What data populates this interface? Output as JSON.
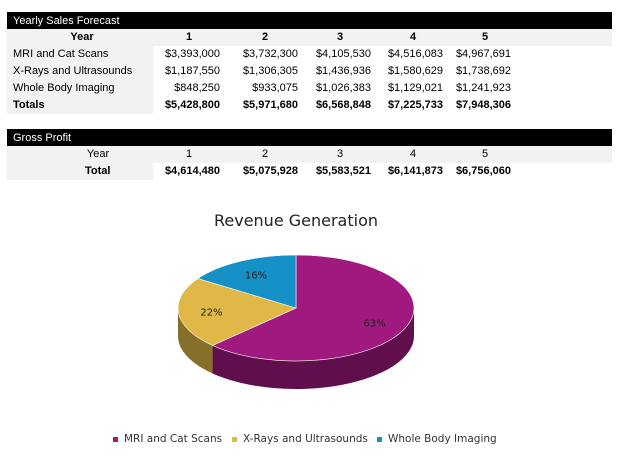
{
  "sales": {
    "title": "Yearly Sales Forecast",
    "year_label": "Year",
    "years": [
      "1",
      "2",
      "3",
      "4",
      "5"
    ],
    "rows": [
      {
        "label": "MRI and Cat Scans",
        "values": [
          "$3,393,000",
          "$3,732,300",
          "$4,105,530",
          "$4,516,083",
          "$4,967,691"
        ]
      },
      {
        "label": "X-Rays and Ultrasounds",
        "values": [
          "$1,187,550",
          "$1,306,305",
          "$1,436,936",
          "$1,580,629",
          "$1,738,692"
        ]
      },
      {
        "label": "Whole Body Imaging",
        "values": [
          "$848,250",
          "$933,075",
          "$1,026,383",
          "$1,129,021",
          "$1,241,923"
        ]
      }
    ],
    "totals": {
      "label": "Totals",
      "values": [
        "$5,428,800",
        "$5,971,680",
        "$6,568,848",
        "$7,225,733",
        "$7,948,306"
      ]
    }
  },
  "gross_profit": {
    "title": "Gross Profit",
    "year_label": "Year",
    "years": [
      "1",
      "2",
      "3",
      "4",
      "5"
    ],
    "total": {
      "label": "Total",
      "values": [
        "$4,614,480",
        "$5,075,928",
        "$5,583,521",
        "$6,141,873",
        "$6,756,060"
      ]
    }
  },
  "chart_data": {
    "type": "pie",
    "title": "Revenue Generation",
    "style": "3d",
    "categories": [
      "MRI and Cat Scans",
      "X-Rays and Ultrasounds",
      "Whole Body Imaging"
    ],
    "values": [
      3393000,
      1187550,
      848250
    ],
    "labels": [
      "63%",
      "22%",
      "16%"
    ],
    "colors": [
      "#a0197f",
      "#e0b848",
      "#1591c8"
    ],
    "legend": "bottom"
  }
}
